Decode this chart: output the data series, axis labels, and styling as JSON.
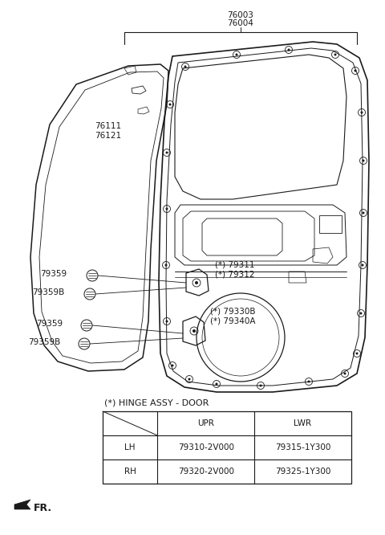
{
  "bg_color": "#ffffff",
  "line_color": "#1a1a1a",
  "text_color": "#1a1a1a",
  "figsize": [
    4.8,
    6.66
  ],
  "dpi": 100,
  "hinge_label": "(*) HINGE ASSY - DOOR",
  "table": {
    "headers": [
      "",
      "UPR",
      "LWR"
    ],
    "rows": [
      [
        "LH",
        "79310-2V000",
        "79315-1Y300"
      ],
      [
        "RH",
        "79320-2V000",
        "79325-1Y300"
      ]
    ]
  }
}
